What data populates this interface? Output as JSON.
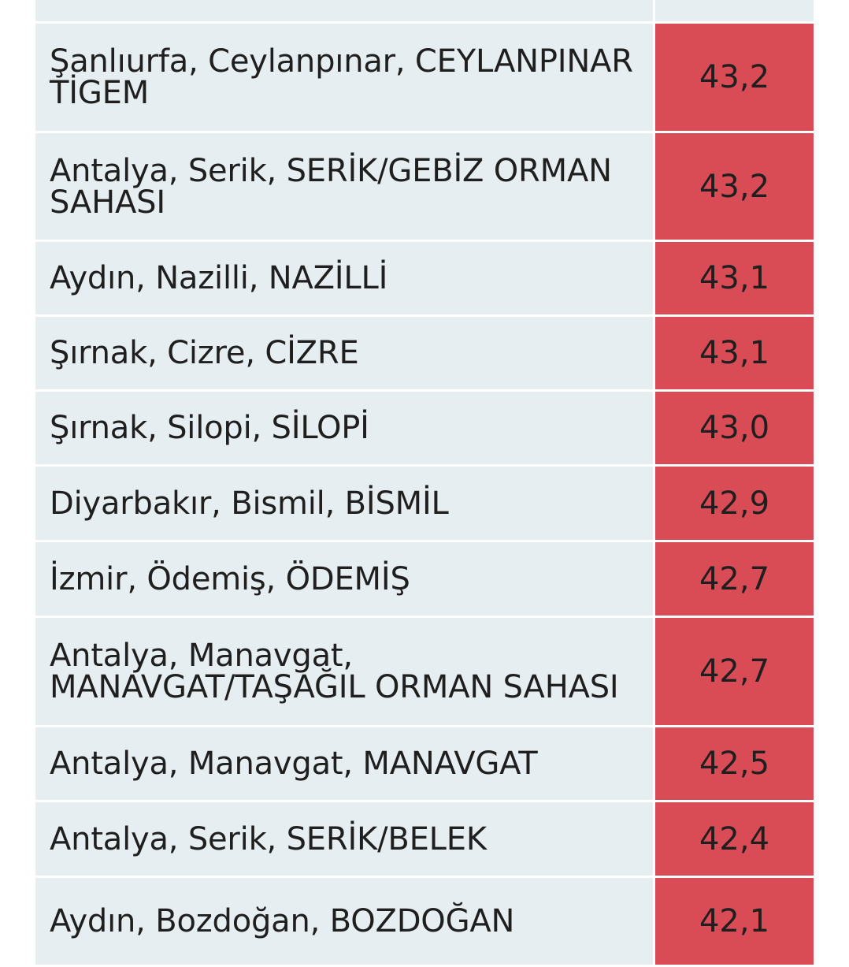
{
  "colors": {
    "name_cell_bg": "#e6eef1",
    "value_cell_bg": "#d94c56",
    "text": "#1f1f1f"
  },
  "rows": [
    {
      "name": "Şanlıurfa, Ceylanpınar, CEYLANPINAR TİGEM",
      "value": "43,2"
    },
    {
      "name": "Antalya, Serik, SERİK/GEBİZ ORMAN SAHASI",
      "value": "43,2"
    },
    {
      "name": "Aydın, Nazilli, NAZİLLİ",
      "value": "43,1"
    },
    {
      "name": "Şırnak, Cizre, CİZRE",
      "value": "43,1"
    },
    {
      "name": "Şırnak, Silopi, SİLOPİ",
      "value": "43,0"
    },
    {
      "name": "Diyarbakır, Bismil, BİSMİL",
      "value": "42,9"
    },
    {
      "name": "İzmir, Ödemiş, ÖDEMİŞ",
      "value": "42,7"
    },
    {
      "name": "Antalya, Manavgat, MANAVGAT/TAŞAĞIL ORMAN SAHASI",
      "value": "42,7"
    },
    {
      "name": "Antalya, Manavgat, MANAVGAT",
      "value": "42,5"
    },
    {
      "name": "Antalya, Serik, SERİK/BELEK",
      "value": "42,4"
    },
    {
      "name": "Aydın, Bozdoğan, BOZDOĞAN",
      "value": "42,1"
    }
  ]
}
